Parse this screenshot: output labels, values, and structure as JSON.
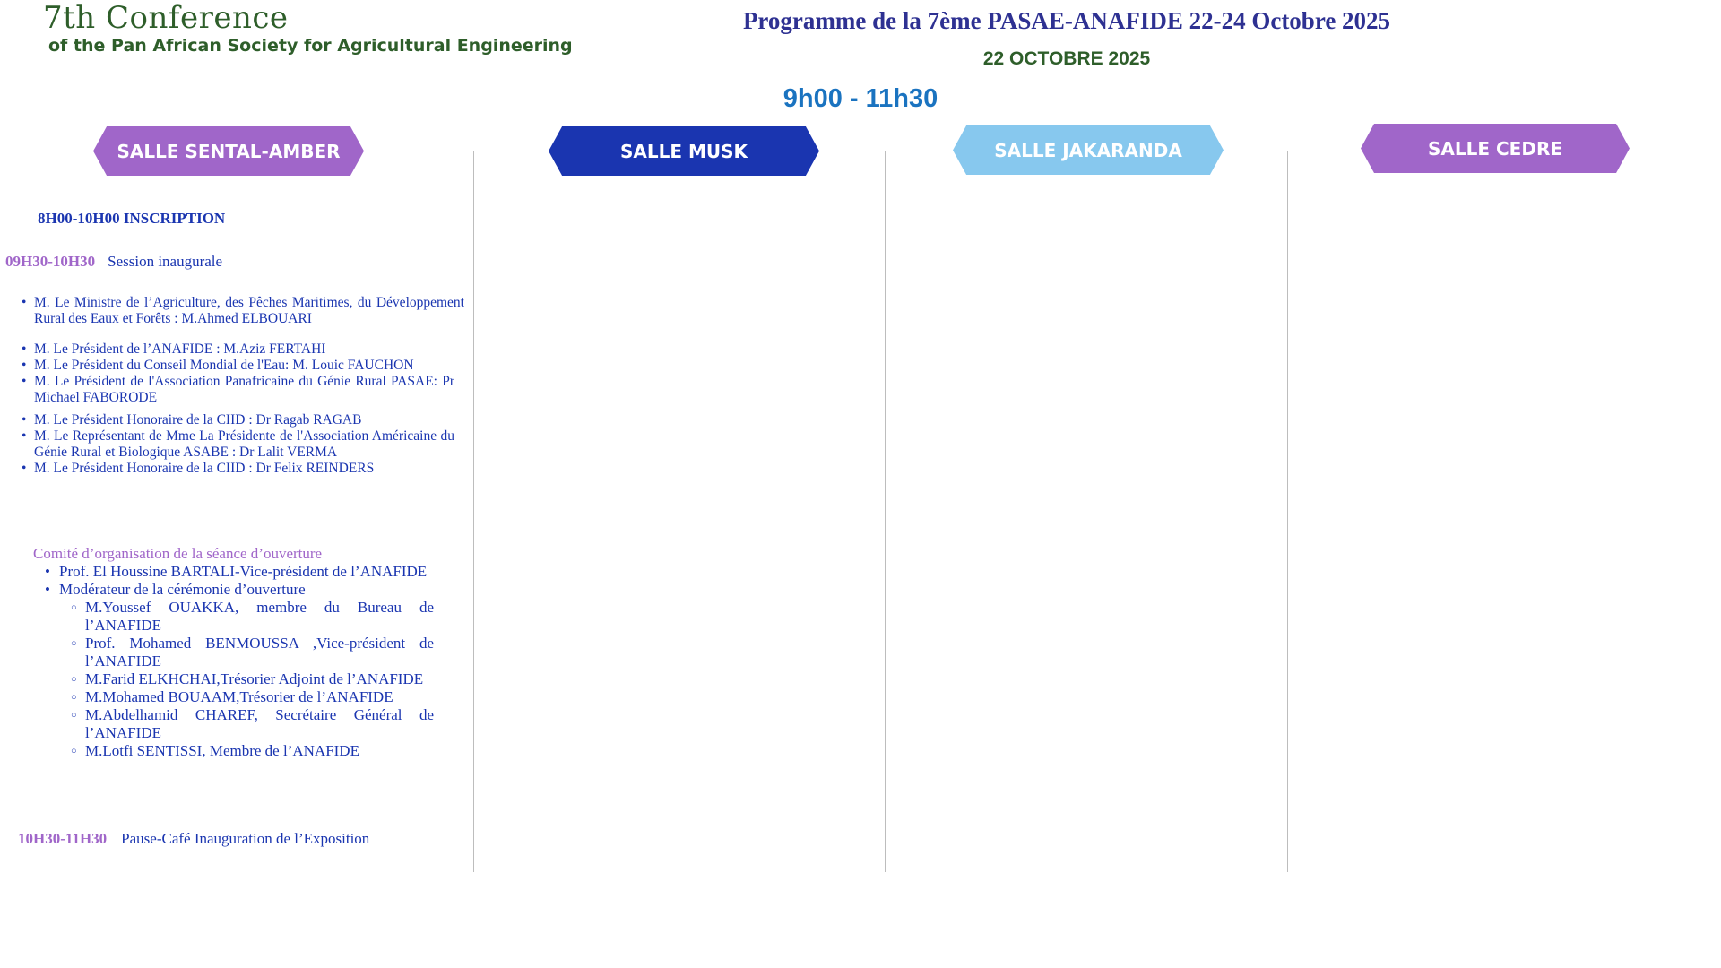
{
  "header": {
    "conference_title": "7th Conference",
    "conference_subtitle": "of the Pan African Society for Agricultural Engineering",
    "programme_title": "Programme de la 7ème PASAE-ANAFIDE 22-24 Octobre 2025",
    "date": "22 OCTOBRE 2025",
    "time_slot": "9h00 - 11h30"
  },
  "rooms": [
    {
      "label": "SALLE SENTAL-AMBER",
      "color": "#a066c9"
    },
    {
      "label": "SALLE MUSK",
      "color": "#1a35b0"
    },
    {
      "label": "SALLE JAKARANDA",
      "color": "#87c8ee"
    },
    {
      "label": "SALLE CEDRE",
      "color": "#a066c9"
    }
  ],
  "sental": {
    "inscription": "8H00-10H00 INSCRIPTION",
    "session_time": "09H30-10H30",
    "session_label": "Session inaugurale",
    "speakers": [
      "M. Le Ministre de l’Agriculture, des Pêches Maritimes, du Développement Rural des Eaux et Forêts : M.Ahmed ELBOUARI",
      "M. Le Président de l’ANAFIDE : M.Aziz FERTAHI",
      "M. Le Président du Conseil Mondial de l'Eau: M. Louic FAUCHON",
      "M. Le Président de l'Association Panafricaine du Génie Rural PASAE: Pr Michael FABORODE",
      "M. Le Président Honoraire de la CIID : Dr Ragab RAGAB",
      "M. Le Représentant de Mme La Présidente de l'Association Américaine du Génie Rural et Biologique ASABE : Dr Lalit VERMA",
      "M. Le Président Honoraire de la CIID : Dr Felix REINDERS"
    ],
    "committee_title": "Comité d’organisation de la séance d’ouverture",
    "committee": [
      "Prof. El Houssine BARTALI-Vice-président de l’ANAFIDE",
      "Modérateur de la cérémonie d’ouverture"
    ],
    "moderators": [
      "M.Youssef OUAKKA, membre du Bureau de l’ANAFIDE",
      "Prof. Mohamed BENMOUSSA ,Vice-président de l’ANAFIDE",
      "M.Farid ELKHCHAI,Trésorier Adjoint de l’ANAFIDE",
      "M.Mohamed BOUAAM,Trésorier de l’ANAFIDE",
      "M.Abdelhamid CHAREF, Secrétaire Général de l’ANAFIDE",
      "M.Lotfi SENTISSI, Membre de l’ANAFIDE"
    ],
    "pause_time": "10H30-11H30",
    "pause_label": "Pause-Café Inauguration de l’Exposition"
  }
}
